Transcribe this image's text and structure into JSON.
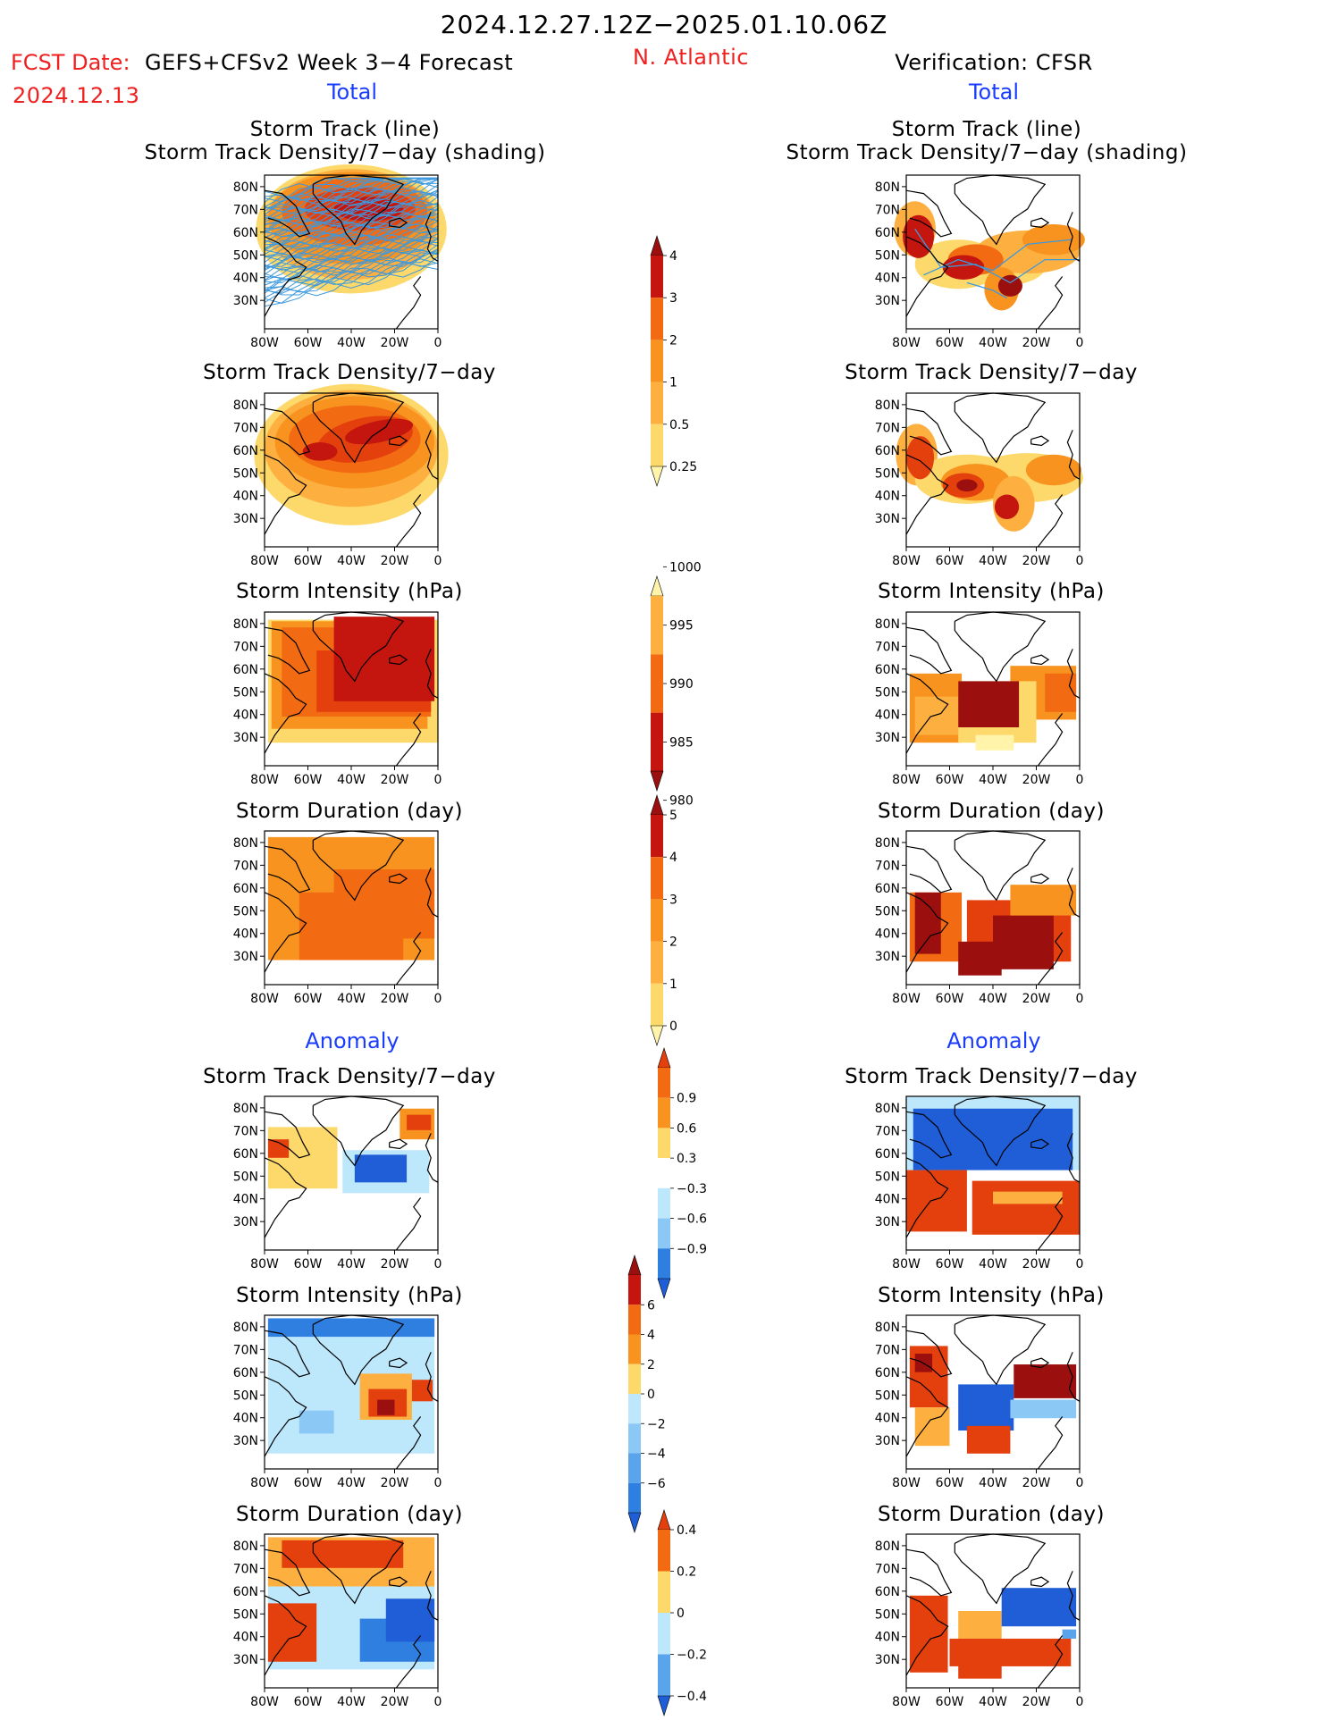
{
  "header": {
    "title": "2024.12.27.12Z−2025.01.10.06Z",
    "fcst_label": "FCST Date:",
    "model": "GEFS+CFSv2 Week 3−4 Forecast",
    "fcst_date": "2024.12.13",
    "region": "N. Atlantic",
    "verification": "Verification: CFSR"
  },
  "sections": {
    "left_total": "Total",
    "right_total": "Total",
    "left_anomaly": "Anomaly",
    "right_anomaly": "Anomaly"
  },
  "panel_titles": {
    "track_line": "Storm Track (line)",
    "track_shading": "Storm Track Density/7−day (shading)",
    "density": "Storm Track Density/7−day",
    "intensity": "Storm Intensity (hPa)",
    "duration": "Storm Duration (day)"
  },
  "axes": {
    "lat_labels": [
      "80N",
      "70N",
      "60N",
      "50N",
      "40N",
      "30N"
    ],
    "lon_labels": [
      "80W",
      "60W",
      "40W",
      "20W",
      "0"
    ]
  },
  "colorbars": {
    "density_total": [
      "4",
      "3",
      "2",
      "1",
      "0.5",
      "0.25"
    ],
    "intensity_total": [
      "1000",
      "995",
      "990",
      "985",
      "980"
    ],
    "duration_total": [
      "5",
      "4",
      "3",
      "2",
      "1",
      "0"
    ],
    "density_anomaly": [
      "0.9",
      "0.6",
      "0.3",
      "−0.3",
      "−0.6",
      "−0.9"
    ],
    "intensity_anomaly": [
      "6",
      "4",
      "2",
      "0",
      "−2",
      "−4",
      "−6"
    ],
    "duration_anomaly": [
      "0.4",
      "0.2",
      "0",
      "−0.2",
      "−0.4"
    ]
  },
  "colors": {
    "warm": [
      "#fff4aa",
      "#fdd86a",
      "#fdb040",
      "#f7931e",
      "#f26b12",
      "#e4400e",
      "#c4150e",
      "#9b0f0f"
    ],
    "cool": [
      "#bde7fb",
      "#8cc8f5",
      "#5aa4ec",
      "#2f7fe0",
      "#1f5ed6"
    ],
    "track_line": "#3d99dd"
  }
}
